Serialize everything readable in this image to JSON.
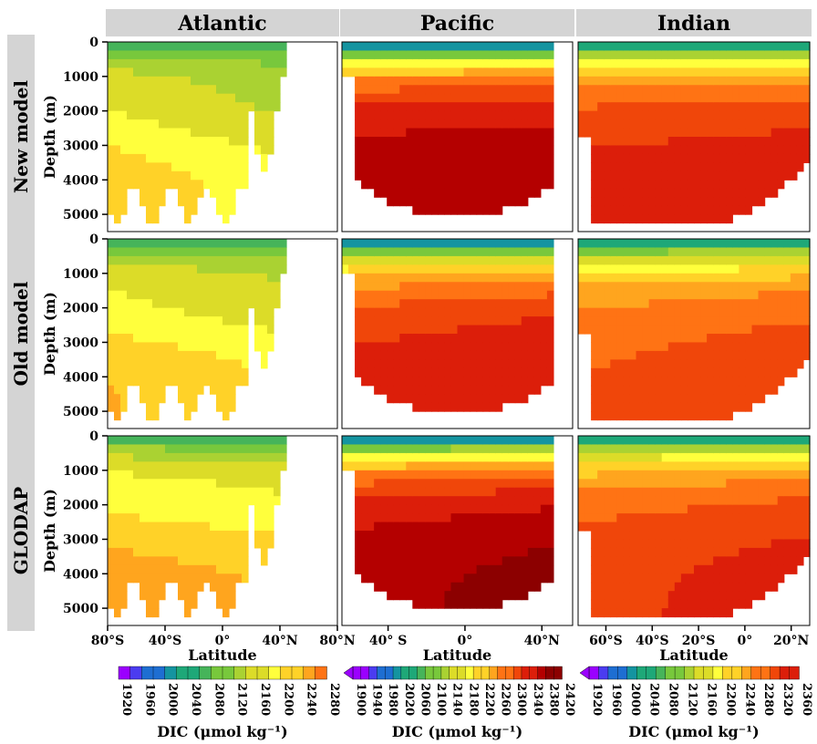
{
  "chart_data": {
    "type": "heatmap",
    "description_free": true,
    "units_label": "DIC (μmol kg⁻¹)",
    "basins": [
      {
        "title": "Atlantic",
        "x_ticks": [
          "80°S",
          "40°S",
          "0°",
          "40°N",
          "80°N"
        ],
        "xlabel": "Latitude",
        "colorbar": [
          "1920",
          "1960",
          "2000",
          "2040",
          "2080",
          "2120",
          "2160",
          "2200",
          "2240",
          "2280"
        ],
        "colorbar_label": "DIC (μmol kg⁻¹)"
      },
      {
        "title": "Pacific",
        "x_ticks": [
          "40° S",
          "0°",
          "40°N"
        ],
        "xlabel": "Latitude",
        "colorbar": [
          "1900",
          "1940",
          "1980",
          "2020",
          "2060",
          "2100",
          "2140",
          "2180",
          "2220",
          "2260",
          "2300",
          "2340",
          "2380",
          "2420"
        ],
        "colorbar_label": "DIC (μmol kg⁻¹)"
      },
      {
        "title": "Indian",
        "x_ticks": [
          "60°S",
          "40°S",
          "20°S",
          "0°",
          "20°N"
        ],
        "xlabel": "Latitude",
        "colorbar": [
          "1920",
          "1960",
          "2000",
          "2040",
          "2080",
          "2120",
          "2160",
          "2200",
          "2240",
          "2280",
          "2320",
          "2360"
        ],
        "colorbar_label": "DIC (μmol kg⁻¹)"
      }
    ],
    "rows": [
      {
        "label": "New model",
        "ylabel": "Depth (m)"
      },
      {
        "label": "Old model",
        "ylabel": "Depth (m)"
      },
      {
        "label": "GLODAP",
        "ylabel": "Depth (m)"
      }
    ],
    "y_ticks": [
      "0",
      "1000",
      "2000",
      "3000",
      "4000",
      "5000"
    ],
    "ylim": [
      0,
      5500
    ],
    "colormap": [
      "#9b00ff",
      "#4b3cf0",
      "#1e6ed2",
      "#1494a0",
      "#1ea878",
      "#46b45a",
      "#78c83c",
      "#aad232",
      "#dcdc28",
      "#ffff3c",
      "#ffd228",
      "#ffa51e",
      "#ff7314",
      "#f0460a",
      "#dc1e0a",
      "#b40000",
      "#8c0000"
    ],
    "panels": [
      {
        "basin": "Atlantic",
        "row": "New model",
        "surface": 2050,
        "deep_core": 2180,
        "max": 2280
      },
      {
        "basin": "Pacific",
        "row": "New model",
        "surface": 1950,
        "deep_core": 2380,
        "max": 2400
      },
      {
        "basin": "Indian",
        "row": "New model",
        "surface": 2000,
        "deep_core": 2340,
        "max": 2360
      },
      {
        "basin": "Atlantic",
        "row": "Old model",
        "surface": 2050,
        "deep_core": 2200,
        "max": 2280
      },
      {
        "basin": "Pacific",
        "row": "Old model",
        "surface": 1950,
        "deep_core": 2340,
        "max": 2380
      },
      {
        "basin": "Indian",
        "row": "Old model",
        "surface": 2000,
        "deep_core": 2300,
        "max": 2340
      },
      {
        "basin": "Atlantic",
        "row": "GLODAP",
        "surface": 2050,
        "deep_core": 2230,
        "max": 2280
      },
      {
        "basin": "Pacific",
        "row": "GLODAP",
        "surface": 1950,
        "deep_core": 2380,
        "max": 2420
      },
      {
        "basin": "Indian",
        "row": "GLODAP",
        "surface": 2000,
        "deep_core": 2320,
        "max": 2360
      }
    ]
  }
}
